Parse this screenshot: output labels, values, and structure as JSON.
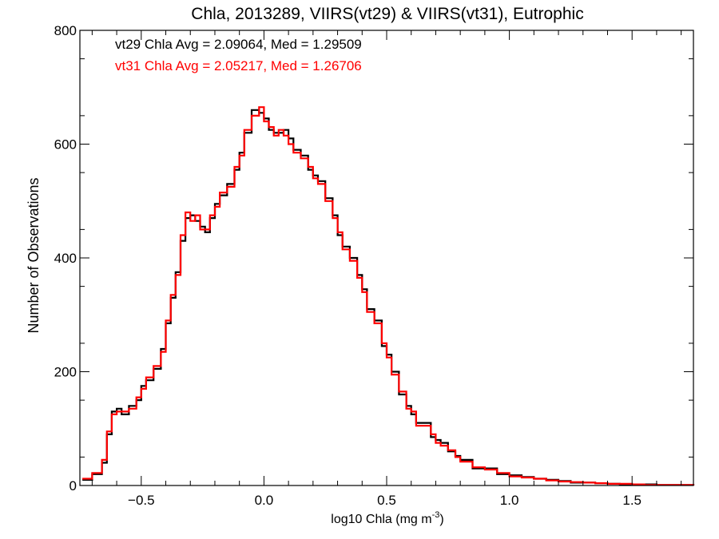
{
  "chart_data": {
    "type": "line",
    "title": "Chla, 2013289, VIIRS(vt29) & VIIRS(vt31), Eutrophic",
    "xlabel_main": "log10 Chla (mg m",
    "xlabel_sup": "-3",
    "xlabel_close": ")",
    "ylabel": "Number of Observations",
    "xlim": [
      -0.75,
      1.75
    ],
    "ylim": [
      0,
      800
    ],
    "xticks": [
      -0.5,
      0.0,
      0.5,
      1.0,
      1.5
    ],
    "xtick_labels": [
      "−0.5",
      "0.0",
      "0.5",
      "1.0",
      "1.5"
    ],
    "yticks": [
      0,
      200,
      400,
      600,
      800
    ],
    "ytick_labels": [
      "0",
      "200",
      "400",
      "600",
      "800"
    ],
    "annotations": [
      {
        "text": "vt29 Chla Avg = 2.09064, Med = 1.29509",
        "color": "#000000"
      },
      {
        "text": "vt31 Chla Avg = 2.05217, Med = 1.26706",
        "color": "#ff0000"
      }
    ],
    "series": [
      {
        "color": "#000000",
        "x": [
          -0.74,
          -0.7,
          -0.66,
          -0.64,
          -0.62,
          -0.6,
          -0.58,
          -0.55,
          -0.52,
          -0.5,
          -0.48,
          -0.45,
          -0.42,
          -0.4,
          -0.38,
          -0.36,
          -0.34,
          -0.32,
          -0.3,
          -0.28,
          -0.26,
          -0.24,
          -0.22,
          -0.2,
          -0.18,
          -0.15,
          -0.12,
          -0.1,
          -0.08,
          -0.05,
          -0.02,
          0.0,
          0.02,
          0.04,
          0.06,
          0.08,
          0.1,
          0.12,
          0.15,
          0.18,
          0.2,
          0.22,
          0.25,
          0.28,
          0.3,
          0.32,
          0.35,
          0.38,
          0.4,
          0.42,
          0.45,
          0.48,
          0.5,
          0.52,
          0.55,
          0.58,
          0.6,
          0.62,
          0.65,
          0.68,
          0.7,
          0.72,
          0.75,
          0.78,
          0.8,
          0.85,
          0.9,
          0.95,
          1.0,
          1.05,
          1.1,
          1.15,
          1.2,
          1.25,
          1.3,
          1.35,
          1.4,
          1.45,
          1.5,
          1.55,
          1.6,
          1.65,
          1.7,
          1.75
        ],
        "y": [
          10,
          20,
          40,
          90,
          130,
          135,
          125,
          140,
          150,
          175,
          185,
          205,
          240,
          285,
          330,
          375,
          430,
          470,
          475,
          465,
          455,
          445,
          470,
          495,
          510,
          530,
          555,
          585,
          620,
          660,
          655,
          645,
          625,
          620,
          620,
          625,
          610,
          590,
          580,
          555,
          545,
          535,
          505,
          475,
          440,
          420,
          400,
          370,
          345,
          310,
          290,
          245,
          230,
          200,
          160,
          140,
          125,
          110,
          110,
          85,
          80,
          75,
          60,
          52,
          45,
          30,
          30,
          20,
          18,
          15,
          12,
          10,
          8,
          5,
          5,
          4,
          3,
          2,
          2,
          2,
          1,
          1,
          1,
          0
        ]
      },
      {
        "color": "#ff0000",
        "x": [
          -0.74,
          -0.7,
          -0.66,
          -0.64,
          -0.62,
          -0.6,
          -0.58,
          -0.55,
          -0.52,
          -0.5,
          -0.48,
          -0.45,
          -0.42,
          -0.4,
          -0.38,
          -0.36,
          -0.34,
          -0.32,
          -0.3,
          -0.28,
          -0.26,
          -0.24,
          -0.22,
          -0.2,
          -0.18,
          -0.15,
          -0.12,
          -0.1,
          -0.08,
          -0.05,
          -0.02,
          0.0,
          0.02,
          0.04,
          0.06,
          0.08,
          0.1,
          0.12,
          0.15,
          0.18,
          0.2,
          0.22,
          0.25,
          0.28,
          0.3,
          0.32,
          0.35,
          0.38,
          0.4,
          0.42,
          0.45,
          0.48,
          0.5,
          0.52,
          0.55,
          0.58,
          0.6,
          0.62,
          0.65,
          0.68,
          0.7,
          0.72,
          0.75,
          0.78,
          0.8,
          0.85,
          0.9,
          0.95,
          1.0,
          1.05,
          1.1,
          1.15,
          1.2,
          1.25,
          1.3,
          1.35,
          1.4,
          1.45,
          1.5,
          1.55,
          1.6,
          1.65,
          1.7,
          1.75
        ],
        "y": [
          12,
          22,
          45,
          95,
          125,
          130,
          130,
          135,
          155,
          170,
          190,
          210,
          235,
          290,
          335,
          370,
          440,
          480,
          465,
          475,
          450,
          450,
          475,
          490,
          515,
          525,
          560,
          580,
          625,
          650,
          665,
          640,
          630,
          615,
          625,
          615,
          600,
          585,
          575,
          560,
          540,
          530,
          500,
          470,
          445,
          415,
          395,
          365,
          340,
          305,
          285,
          250,
          225,
          195,
          165,
          135,
          130,
          105,
          105,
          90,
          75,
          70,
          62,
          50,
          42,
          32,
          28,
          22,
          16,
          14,
          12,
          9,
          7,
          6,
          5,
          4,
          3,
          3,
          2,
          1,
          1,
          1,
          1,
          0
        ]
      }
    ]
  }
}
